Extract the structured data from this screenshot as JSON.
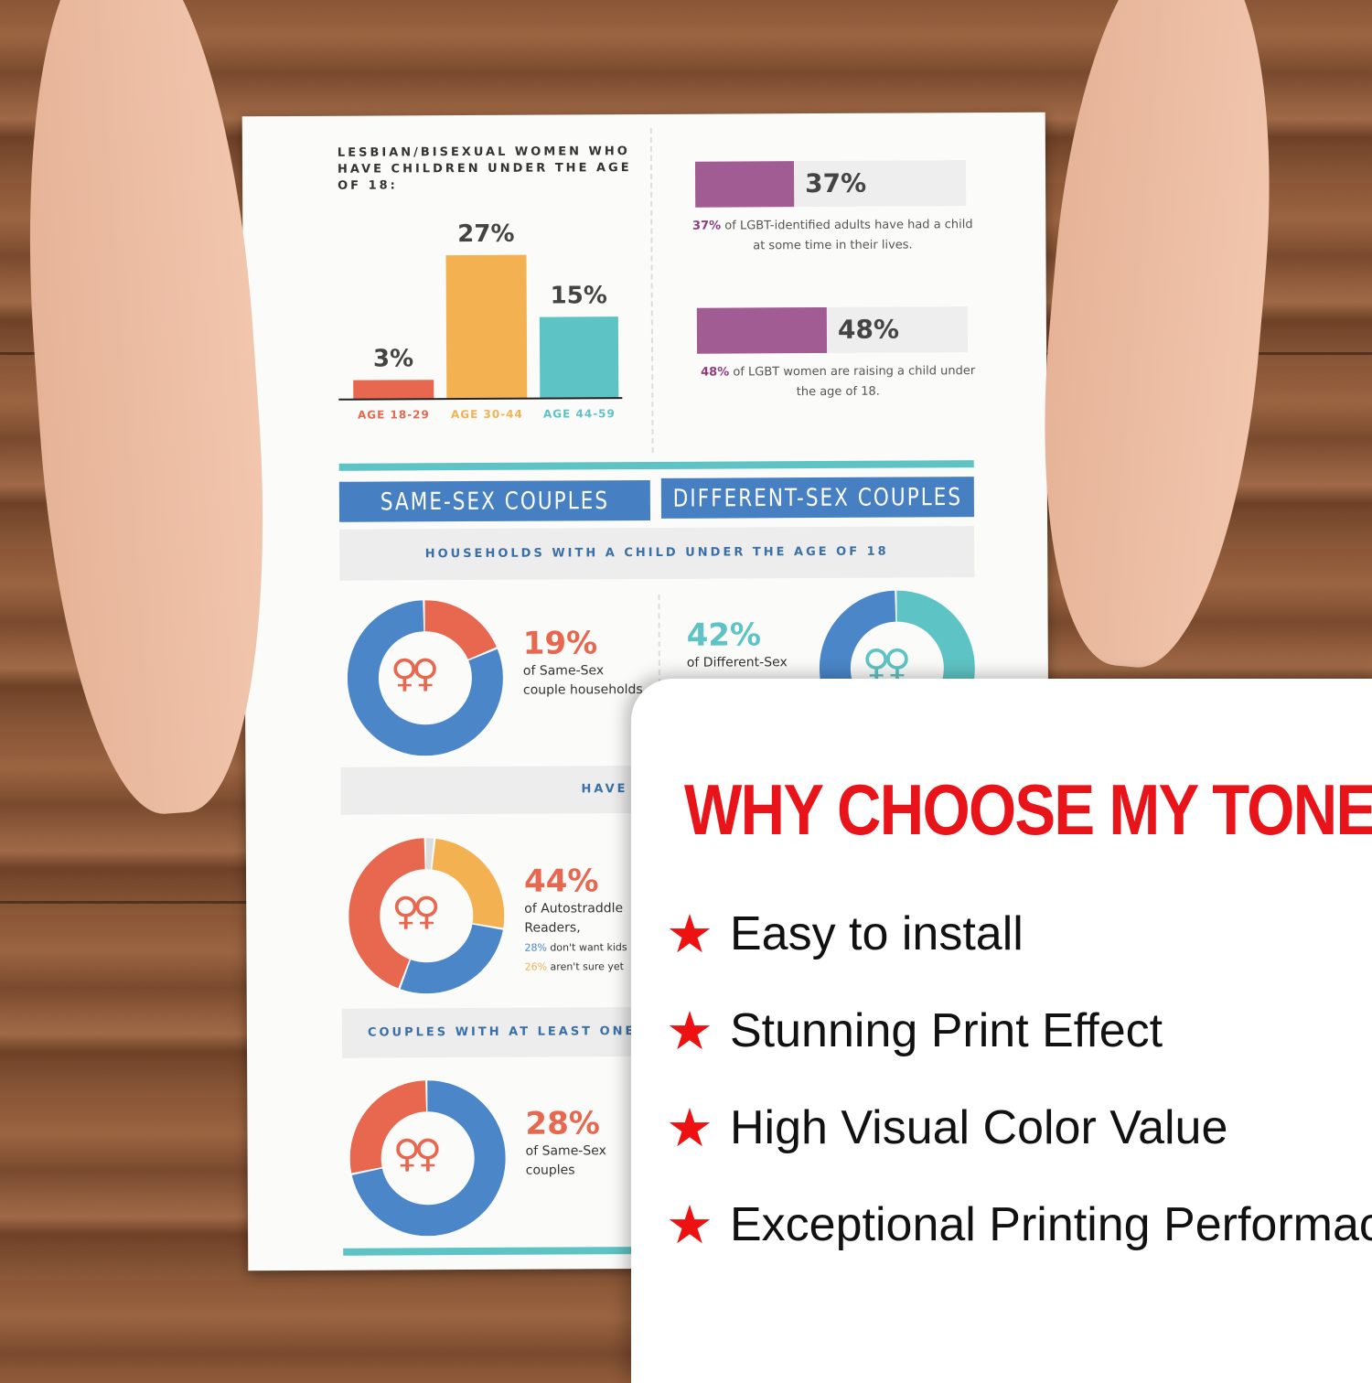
{
  "paper": {
    "bar_chart": {
      "title": "LESBIAN/BISEXUAL WOMEN WHO HAVE CHILDREN UNDER THE AGE OF 18:",
      "chart_data": {
        "type": "bar",
        "categories": [
          "AGE 18-29",
          "AGE 30-44",
          "AGE 44-59"
        ],
        "values": [
          3,
          27,
          15
        ],
        "data_labels": [
          "3%",
          "27%",
          "15%"
        ],
        "colors": [
          "#e8674f",
          "#f3b152",
          "#5ec3c4"
        ]
      }
    },
    "stats": [
      {
        "value": 37,
        "label": "37%",
        "caption_pct": "37%",
        "caption": " of LGBT-identified adults have had a child at some time in their lives."
      },
      {
        "value": 48,
        "label": "48%",
        "caption_pct": "48%",
        "caption": " of LGBT women are raising a child under the age of 18."
      }
    ],
    "headers": {
      "same_sex": "SAME-SEX COUPLES",
      "different_sex": "DIFFERENT-SEX COUPLES"
    },
    "section1": "HOUSEHOLDS WITH A CHILD UNDER THE AGE OF 18",
    "section2": "HAVE OR WANT T",
    "section3": "COUPLES WITH AT LEAST ONE M",
    "donuts": [
      {
        "pct": "19%",
        "line1": "of Same-Sex",
        "line2": "couple households",
        "segments": [
          {
            "value": 19,
            "color": "#e8674f"
          },
          {
            "value": 81,
            "color": "#4a86c8"
          }
        ],
        "accent": "#e8674f"
      },
      {
        "pct": "42%",
        "line1": "of Different-Sex",
        "segments": [
          {
            "value": 42,
            "color": "#5ec3c4"
          },
          {
            "value": 58,
            "color": "#4a86c8"
          }
        ],
        "accent": "#5ec3c4"
      },
      {
        "pct": "44%",
        "line1": "of Autostraddle",
        "line2": "Readers,",
        "note1_pct": "28%",
        "note1": " don't want kids",
        "note2_pct": "26%",
        "note2": " aren't sure yet",
        "segments": [
          {
            "value": 2,
            "color": "#dddddd"
          },
          {
            "value": 26,
            "color": "#f3b152"
          },
          {
            "value": 28,
            "color": "#4a86c8"
          },
          {
            "value": 44,
            "color": "#e8674f"
          }
        ],
        "accent": "#e8674f"
      },
      {
        "pct": "28%",
        "line1": "of Same-Sex",
        "line2": "couples",
        "segments": [
          {
            "value": 72,
            "color": "#4a86c8"
          },
          {
            "value": 28,
            "color": "#e8674f"
          }
        ],
        "accent": "#e8674f"
      }
    ],
    "venus_symbol": "♀♀"
  },
  "card": {
    "title": "WHY CHOOSE MY TONER",
    "features": [
      "Easy to install",
      "Stunning Print Effect",
      "High Visual Color Value",
      "Exceptional Printing Performace"
    ],
    "star_icon": "★",
    "star_color": "#ee1111",
    "title_color": "#e8141a"
  }
}
